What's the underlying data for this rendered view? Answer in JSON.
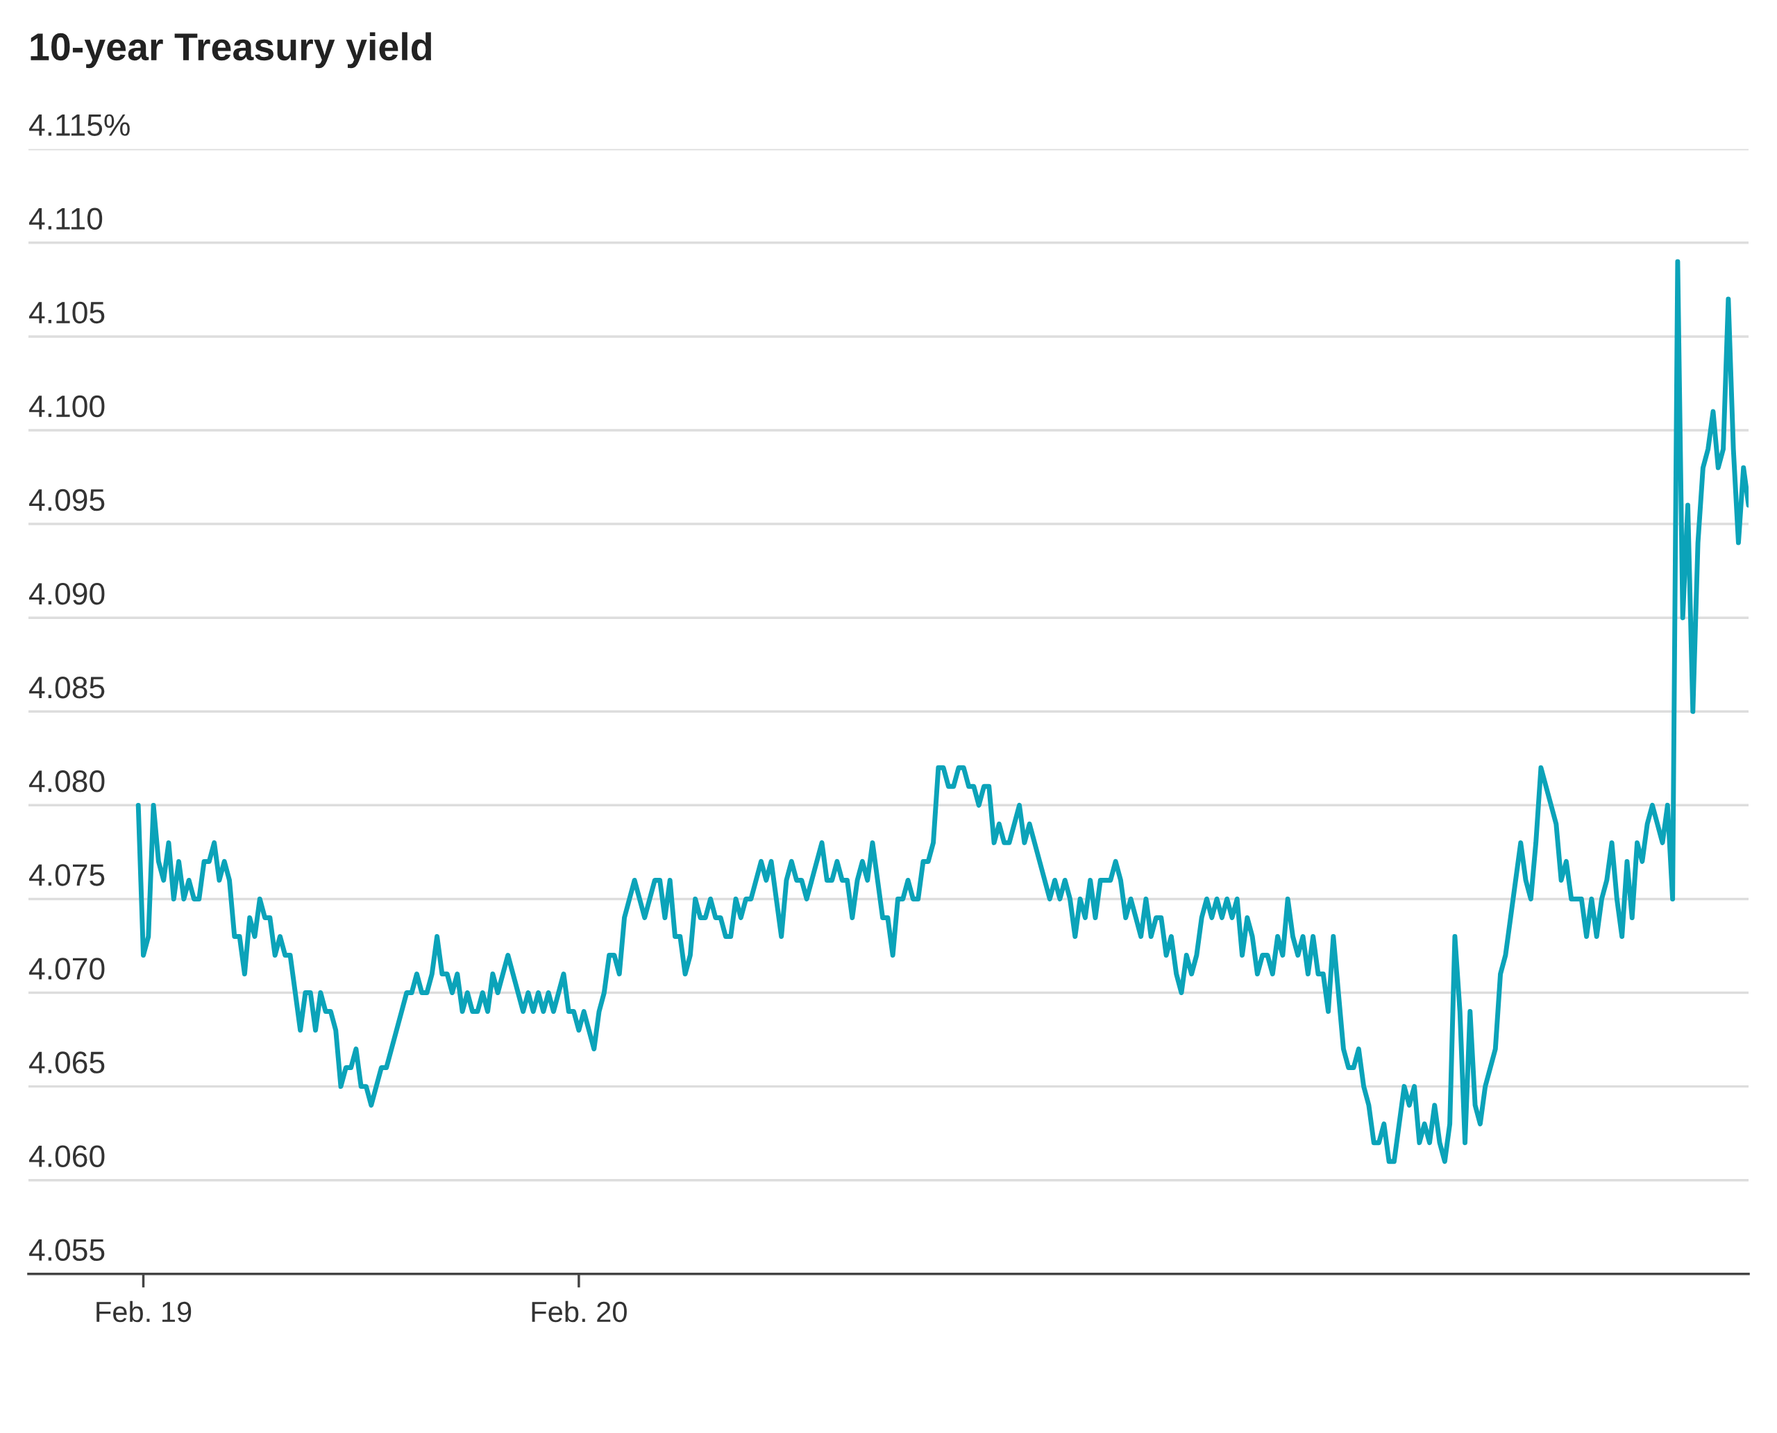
{
  "chart_data": {
    "type": "line",
    "title": "10-year Treasury yield",
    "categories": [
      null,
      "Feb. 19",
      null,
      null,
      null,
      null,
      null,
      null,
      null,
      null,
      null,
      null,
      null,
      null,
      null,
      null,
      null,
      null,
      null,
      null,
      null,
      null,
      null,
      null,
      null,
      null,
      null,
      null,
      null,
      null,
      null,
      null,
      null,
      null,
      null,
      null,
      null,
      null,
      null,
      null,
      null,
      null,
      null,
      null,
      null,
      null,
      null,
      null,
      null,
      null,
      null,
      null,
      null,
      null,
      null,
      null,
      null,
      null,
      null,
      null,
      null,
      null,
      null,
      null,
      null,
      null,
      null,
      null,
      null,
      null,
      null,
      null,
      null,
      null,
      null,
      null,
      null,
      null,
      null,
      null,
      null,
      null,
      null,
      null,
      null,
      null,
      null,
      "Feb. 20",
      null,
      null,
      null,
      null,
      null,
      null,
      null,
      null,
      null,
      null,
      null,
      null,
      null,
      null,
      null,
      null,
      null,
      null,
      null,
      null,
      null,
      null,
      null,
      null,
      null,
      null,
      null,
      null,
      null,
      null,
      null,
      null,
      null,
      null,
      null,
      null,
      null,
      null,
      null,
      null,
      null,
      null,
      null,
      null,
      null,
      null,
      null,
      null,
      null,
      null,
      null,
      null,
      null,
      null,
      null,
      null,
      null,
      null,
      null,
      null,
      null,
      null,
      null,
      null,
      null,
      null,
      null,
      null,
      null,
      null,
      null,
      null,
      null,
      null,
      null,
      null,
      null,
      null,
      null,
      null,
      null,
      null,
      null,
      null,
      null,
      null,
      null,
      null,
      null,
      null,
      null,
      null,
      null,
      null,
      null,
      null,
      null,
      null,
      null,
      null,
      null,
      null,
      null,
      null,
      null,
      null,
      null,
      null,
      null,
      null,
      null,
      null,
      null,
      null,
      null,
      null,
      null,
      null,
      null,
      null,
      null,
      null,
      null,
      null,
      null,
      null,
      null,
      null,
      null,
      null,
      null,
      null,
      null,
      null,
      null,
      null,
      null,
      null,
      null,
      null,
      null,
      null,
      null,
      null,
      null,
      null,
      null,
      null,
      null,
      null,
      null,
      null,
      null,
      null,
      null,
      null,
      null,
      null,
      null,
      null,
      null,
      null,
      null,
      null,
      null,
      null,
      null,
      null,
      null,
      null,
      null,
      null,
      null,
      null,
      null,
      null,
      null,
      null,
      null,
      null,
      null,
      null,
      null,
      null,
      null,
      null,
      null,
      null,
      null,
      null,
      null,
      null,
      null,
      null,
      null,
      null,
      null,
      null,
      null,
      null,
      null,
      null,
      null,
      null,
      null,
      null,
      null,
      null,
      null,
      null,
      null,
      null,
      null,
      null,
      null,
      null,
      null,
      null,
      null,
      null,
      null,
      null,
      null,
      null,
      null,
      null,
      null,
      null,
      null,
      null,
      null
    ],
    "ylim": [
      4.055,
      4.115
    ],
    "yticks": [
      {
        "value": 4.055,
        "label": "4.055"
      },
      {
        "value": 4.06,
        "label": "4.060"
      },
      {
        "value": 4.065,
        "label": "4.065"
      },
      {
        "value": 4.07,
        "label": "4.070"
      },
      {
        "value": 4.075,
        "label": "4.075"
      },
      {
        "value": 4.08,
        "label": "4.080"
      },
      {
        "value": 4.085,
        "label": "4.085"
      },
      {
        "value": 4.09,
        "label": "4.090"
      },
      {
        "value": 4.095,
        "label": "4.095"
      },
      {
        "value": 4.1,
        "label": "4.100"
      },
      {
        "value": 4.105,
        "label": "4.105"
      },
      {
        "value": 4.11,
        "label": "4.110"
      },
      {
        "value": 4.115,
        "label": "4.115%"
      }
    ],
    "grid": "y",
    "legend": false,
    "marker": "none",
    "line_style": "solid",
    "series": [
      {
        "color": "#0ba3b9",
        "values": [
          4.08,
          4.072,
          4.073,
          4.08,
          4.077,
          4.076,
          4.078,
          4.075,
          4.077,
          4.075,
          4.076,
          4.075,
          4.075,
          4.077,
          4.077,
          4.078,
          4.076,
          4.077,
          4.076,
          4.073,
          4.073,
          4.071,
          4.074,
          4.073,
          4.075,
          4.074,
          4.074,
          4.072,
          4.073,
          4.072,
          4.072,
          4.07,
          4.068,
          4.07,
          4.07,
          4.068,
          4.07,
          4.069,
          4.069,
          4.068,
          4.065,
          4.066,
          4.066,
          4.067,
          4.065,
          4.065,
          4.064,
          4.065,
          4.066,
          4.066,
          4.067,
          4.068,
          4.069,
          4.07,
          4.07,
          4.071,
          4.07,
          4.07,
          4.071,
          4.073,
          4.071,
          4.071,
          4.07,
          4.071,
          4.069,
          4.07,
          4.069,
          4.069,
          4.07,
          4.069,
          4.071,
          4.07,
          4.071,
          4.072,
          4.071,
          4.07,
          4.069,
          4.07,
          4.069,
          4.07,
          4.069,
          4.07,
          4.069,
          4.07,
          4.071,
          4.069,
          4.069,
          4.068,
          4.069,
          4.068,
          4.067,
          4.069,
          4.07,
          4.072,
          4.072,
          4.071,
          4.074,
          4.075,
          4.076,
          4.075,
          4.074,
          4.075,
          4.076,
          4.076,
          4.074,
          4.076,
          4.073,
          4.073,
          4.071,
          4.072,
          4.075,
          4.074,
          4.074,
          4.075,
          4.074,
          4.074,
          4.073,
          4.073,
          4.075,
          4.074,
          4.075,
          4.075,
          4.076,
          4.077,
          4.076,
          4.077,
          4.075,
          4.073,
          4.076,
          4.077,
          4.076,
          4.076,
          4.075,
          4.076,
          4.077,
          4.078,
          4.076,
          4.076,
          4.077,
          4.076,
          4.076,
          4.074,
          4.076,
          4.077,
          4.076,
          4.078,
          4.076,
          4.074,
          4.074,
          4.072,
          4.075,
          4.075,
          4.076,
          4.075,
          4.075,
          4.077,
          4.077,
          4.078,
          4.082,
          4.082,
          4.081,
          4.081,
          4.082,
          4.082,
          4.081,
          4.081,
          4.08,
          4.081,
          4.081,
          4.078,
          4.079,
          4.078,
          4.078,
          4.079,
          4.08,
          4.078,
          4.079,
          4.078,
          4.077,
          4.076,
          4.075,
          4.076,
          4.075,
          4.076,
          4.075,
          4.073,
          4.075,
          4.074,
          4.076,
          4.074,
          4.076,
          4.076,
          4.076,
          4.077,
          4.076,
          4.074,
          4.075,
          4.074,
          4.073,
          4.075,
          4.073,
          4.074,
          4.074,
          4.072,
          4.073,
          4.071,
          4.07,
          4.072,
          4.071,
          4.072,
          4.074,
          4.075,
          4.074,
          4.075,
          4.074,
          4.075,
          4.074,
          4.075,
          4.072,
          4.074,
          4.073,
          4.071,
          4.072,
          4.072,
          4.071,
          4.073,
          4.072,
          4.075,
          4.073,
          4.072,
          4.073,
          4.071,
          4.073,
          4.071,
          4.071,
          4.069,
          4.073,
          4.07,
          4.067,
          4.066,
          4.066,
          4.067,
          4.065,
          4.064,
          4.062,
          4.062,
          4.063,
          4.061,
          4.061,
          4.063,
          4.065,
          4.064,
          4.065,
          4.062,
          4.063,
          4.062,
          4.064,
          4.062,
          4.061,
          4.063,
          4.073,
          4.069,
          4.062,
          4.069,
          4.064,
          4.063,
          4.065,
          4.066,
          4.067,
          4.071,
          4.072,
          4.074,
          4.076,
          4.078,
          4.076,
          4.075,
          4.078,
          4.082,
          4.081,
          4.08,
          4.079,
          4.076,
          4.077,
          4.075,
          4.075,
          4.075,
          4.073,
          4.075,
          4.073,
          4.075,
          4.076,
          4.078,
          4.075,
          4.073,
          4.077,
          4.074,
          4.078,
          4.077,
          4.079,
          4.08,
          4.079,
          4.078,
          4.08,
          4.075,
          4.109,
          4.09,
          4.096,
          4.085,
          4.094,
          4.098,
          4.099,
          4.101,
          4.098,
          4.099,
          4.107,
          4.099,
          4.094,
          4.098,
          4.096
        ]
      }
    ]
  }
}
